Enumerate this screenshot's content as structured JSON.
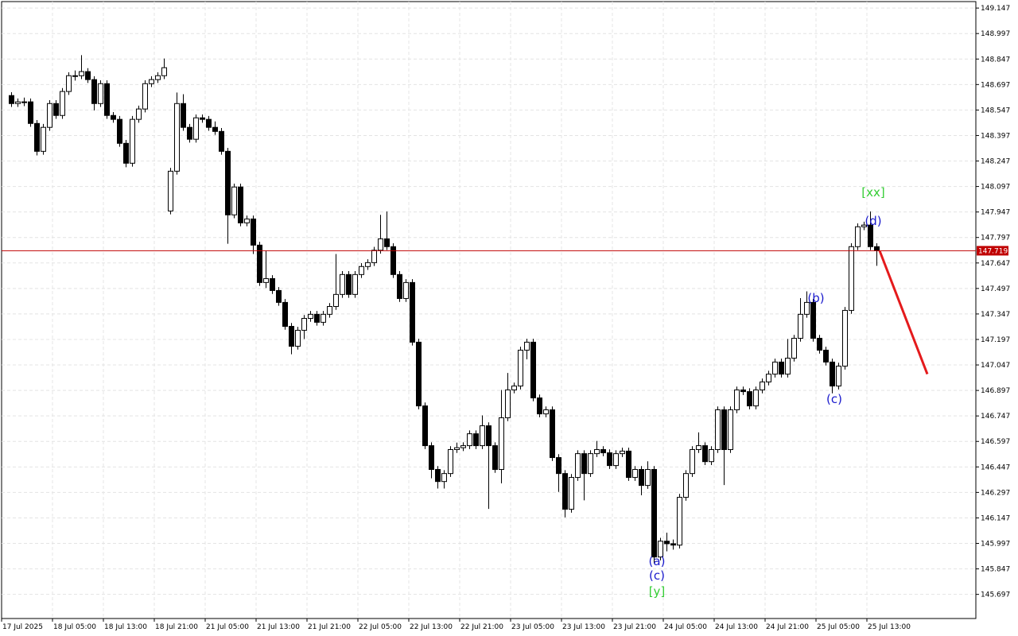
{
  "chart_data": {
    "type": "candlestick",
    "categories": [
      "17 Jul 2025",
      null,
      null,
      null,
      null,
      null,
      null,
      null,
      "18 Jul 05:00",
      null,
      null,
      null,
      null,
      null,
      null,
      null,
      "18 Jul 13:00",
      null,
      null,
      null,
      null,
      null,
      null,
      null,
      "18 Jul 21:00",
      null,
      null,
      null,
      null,
      null,
      null,
      null,
      "21 Jul 05:00",
      null,
      null,
      null,
      null,
      null,
      null,
      null,
      "21 Jul 13:00",
      null,
      null,
      null,
      null,
      null,
      null,
      null,
      "21 Jul 21:00",
      null,
      null,
      null,
      null,
      null,
      null,
      null,
      "22 Jul 05:00",
      null,
      null,
      null,
      null,
      null,
      null,
      null,
      "22 Jul 13:00",
      null,
      null,
      null,
      null,
      null,
      null,
      null,
      "22 Jul 21:00",
      null,
      null,
      null,
      null,
      null,
      null,
      null,
      "23 Jul 05:00",
      null,
      null,
      null,
      null,
      null,
      null,
      null,
      "23 Jul 13:00",
      null,
      null,
      null,
      null,
      null,
      null,
      null,
      "23 Jul 21:00",
      null,
      null,
      null,
      null,
      null,
      null,
      null,
      "24 Jul 05:00",
      null,
      null,
      null,
      null,
      null,
      null,
      null,
      "24 Jul 13:00",
      null,
      null,
      null,
      null,
      null,
      null,
      null,
      "24 Jul 21:00",
      null,
      null,
      null,
      null,
      null,
      null,
      null,
      "25 Jul 05:00",
      null,
      null,
      null,
      null,
      null,
      null,
      null,
      "25 Jul 13:00"
    ],
    "open": [
      148.632,
      148.585,
      148.595,
      148.595,
      148.468,
      148.304,
      148.445,
      148.585,
      148.515,
      148.656,
      148.749,
      148.749,
      148.773,
      148.726,
      148.585,
      148.702,
      148.515,
      148.492,
      148.351,
      148.234,
      148.492,
      148.553,
      148.702,
      148.726,
      148.749,
      147.953,
      148.187,
      148.585,
      148.445,
      148.375,
      148.501,
      148.492,
      148.445,
      148.421,
      148.304,
      147.93,
      148.094,
      147.883,
      147.906,
      147.752,
      147.532,
      147.555,
      147.485,
      147.415,
      147.274,
      147.157,
      147.251,
      147.321,
      147.345,
      147.298,
      147.345,
      147.391,
      147.462,
      147.579,
      147.462,
      147.579,
      147.626,
      147.649,
      147.722,
      147.789,
      147.743,
      147.579,
      147.438,
      147.532,
      147.181,
      146.806,
      146.572,
      146.432,
      146.361,
      146.408,
      146.549,
      146.56,
      146.572,
      146.642,
      146.572,
      146.689,
      146.572,
      146.432,
      146.736,
      146.9,
      146.923,
      147.134,
      147.181,
      146.853,
      146.759,
      146.783,
      146.502,
      146.408,
      146.198,
      146.385,
      146.525,
      146.408,
      146.525,
      146.549,
      146.53,
      146.455,
      146.525,
      146.54,
      146.385,
      146.432,
      146.338,
      146.432,
      145.917,
      146.01,
      145.995,
      145.987,
      146.268,
      146.408,
      146.549,
      146.572,
      146.478,
      146.549,
      146.783,
      146.549,
      146.783,
      146.9,
      146.89,
      146.806,
      146.9,
      146.947,
      146.993,
      147.064,
      146.993,
      147.087,
      147.204,
      147.345,
      147.415,
      147.204,
      147.134,
      147.064,
      146.923,
      147.04,
      147.368,
      147.743,
      147.86,
      147.87,
      147.743
    ],
    "high": [
      148.652,
      148.615,
      148.62,
      148.615,
      148.488,
      148.465,
      148.605,
      148.605,
      148.676,
      148.769,
      148.78,
      148.87,
      148.793,
      148.746,
      148.722,
      148.722,
      148.535,
      148.512,
      148.371,
      148.512,
      148.573,
      148.722,
      148.746,
      148.769,
      148.85,
      148.207,
      148.65,
      148.64,
      148.465,
      148.521,
      148.521,
      148.512,
      148.48,
      148.441,
      148.324,
      148.114,
      148.114,
      147.926,
      147.926,
      147.772,
      147.72,
      147.575,
      147.505,
      147.435,
      147.294,
      147.271,
      147.341,
      147.365,
      147.365,
      147.365,
      147.411,
      147.7,
      147.599,
      147.599,
      147.599,
      147.646,
      147.669,
      147.742,
      147.93,
      147.95,
      147.763,
      147.599,
      147.552,
      147.552,
      147.201,
      146.826,
      146.592,
      146.452,
      146.428,
      146.569,
      146.59,
      146.592,
      146.662,
      146.662,
      146.75,
      146.709,
      146.592,
      146.9,
      147.0,
      146.943,
      147.154,
      147.201,
      147.201,
      146.873,
      146.803,
      146.803,
      146.522,
      146.428,
      146.405,
      146.545,
      146.545,
      146.545,
      146.6,
      146.569,
      146.55,
      146.545,
      146.56,
      146.56,
      146.452,
      146.452,
      146.48,
      146.452,
      146.03,
      146.06,
      146.02,
      146.288,
      146.428,
      146.569,
      146.65,
      146.592,
      146.569,
      146.803,
      146.803,
      146.803,
      146.92,
      146.92,
      146.91,
      146.92,
      146.967,
      147.013,
      147.084,
      147.084,
      147.2,
      147.224,
      147.44,
      147.48,
      147.435,
      147.224,
      147.154,
      147.084,
      147.06,
      147.388,
      147.763,
      147.88,
      147.89,
      147.95,
      147.763
    ],
    "low": [
      148.565,
      148.565,
      148.57,
      148.448,
      148.28,
      148.284,
      148.425,
      148.495,
      148.495,
      148.636,
      148.72,
      148.729,
      148.706,
      148.545,
      148.565,
      148.495,
      148.472,
      148.331,
      148.21,
      148.214,
      148.472,
      148.533,
      148.682,
      148.706,
      148.729,
      147.933,
      148.167,
      148.425,
      148.355,
      148.355,
      148.472,
      148.425,
      148.401,
      148.284,
      147.76,
      147.91,
      147.863,
      147.863,
      147.7,
      147.512,
      147.5,
      147.465,
      147.395,
      147.254,
      147.11,
      147.137,
      147.2,
      147.301,
      147.278,
      147.278,
      147.325,
      147.371,
      147.442,
      147.442,
      147.442,
      147.559,
      147.606,
      147.629,
      147.702,
      147.723,
      147.559,
      147.418,
      147.418,
      147.161,
      146.786,
      146.552,
      146.38,
      146.32,
      146.32,
      146.388,
      146.529,
      146.54,
      146.552,
      146.552,
      146.552,
      146.2,
      146.412,
      146.35,
      146.716,
      146.88,
      146.903,
      147.08,
      146.833,
      146.739,
      146.739,
      146.482,
      146.3,
      146.15,
      146.178,
      146.365,
      146.25,
      146.388,
      146.505,
      146.51,
      146.435,
      146.435,
      146.505,
      146.365,
      146.365,
      146.28,
      146.318,
      145.88,
      145.897,
      145.95,
      145.96,
      145.967,
      146.248,
      146.388,
      146.529,
      146.458,
      146.458,
      146.529,
      146.34,
      146.529,
      146.763,
      146.87,
      146.786,
      146.786,
      146.88,
      146.927,
      146.973,
      146.973,
      146.973,
      147.067,
      147.184,
      147.325,
      147.184,
      147.114,
      147.044,
      146.88,
      146.903,
      147.02,
      147.348,
      147.723,
      147.84,
      147.723,
      147.63
    ],
    "close": [
      148.585,
      148.595,
      148.595,
      148.468,
      148.304,
      148.445,
      148.585,
      148.515,
      148.656,
      148.749,
      148.749,
      148.773,
      148.726,
      148.585,
      148.702,
      148.515,
      148.492,
      148.351,
      148.234,
      148.492,
      148.553,
      148.702,
      148.726,
      148.749,
      148.796,
      148.187,
      148.585,
      148.445,
      148.375,
      148.501,
      148.492,
      148.445,
      148.421,
      148.304,
      147.93,
      148.094,
      147.883,
      147.906,
      147.752,
      147.532,
      147.555,
      147.485,
      147.415,
      147.274,
      147.157,
      147.251,
      147.321,
      147.345,
      147.298,
      147.345,
      147.391,
      147.462,
      147.579,
      147.462,
      147.579,
      147.626,
      147.649,
      147.722,
      147.789,
      147.743,
      147.579,
      147.438,
      147.532,
      147.181,
      146.806,
      146.572,
      146.432,
      146.361,
      146.408,
      146.549,
      146.56,
      146.572,
      146.642,
      146.572,
      146.689,
      146.572,
      146.432,
      146.736,
      146.9,
      146.923,
      147.134,
      147.181,
      146.853,
      146.759,
      146.783,
      146.502,
      146.408,
      146.198,
      146.385,
      146.525,
      146.408,
      146.525,
      146.549,
      146.53,
      146.455,
      146.525,
      146.54,
      146.385,
      146.432,
      146.338,
      146.432,
      145.917,
      146.01,
      145.995,
      145.987,
      146.268,
      146.408,
      146.549,
      146.572,
      146.478,
      146.549,
      146.783,
      146.549,
      146.783,
      146.9,
      146.89,
      146.806,
      146.9,
      146.947,
      146.993,
      147.064,
      146.993,
      147.087,
      147.204,
      147.345,
      147.415,
      147.204,
      147.134,
      147.064,
      146.923,
      147.04,
      147.368,
      147.743,
      147.86,
      147.87,
      147.743,
      147.719
    ],
    "up_color": "#ffffff",
    "down_color": "#000000",
    "ylim": [
      145.555,
      149.185
    ],
    "yticks": [
      149.147,
      148.997,
      148.847,
      148.697,
      148.547,
      148.397,
      148.247,
      148.097,
      147.947,
      147.797,
      147.647,
      147.497,
      147.347,
      147.197,
      147.047,
      146.897,
      146.747,
      146.597,
      146.447,
      146.297,
      146.147,
      145.997,
      145.847,
      145.697
    ],
    "grid": true,
    "price_line": {
      "value": 147.719,
      "color": "#c00000"
    },
    "forecast": {
      "color": "#e41a1c",
      "values": [
        147.719,
        146.993
      ]
    },
    "annotations": [
      {
        "text": "[xx]",
        "color": "#33cc33"
      },
      {
        "text": "(d)",
        "color": "#1a1acc"
      },
      {
        "text": "(b)",
        "color": "#1a1acc"
      },
      {
        "text": "(c)",
        "color": "#1a1acc"
      },
      {
        "text": "(a)",
        "color": "#1a1acc"
      },
      {
        "text": "(c)",
        "color": "#1a1acc"
      },
      {
        "text": "[y]",
        "color": "#33cc33"
      }
    ]
  }
}
